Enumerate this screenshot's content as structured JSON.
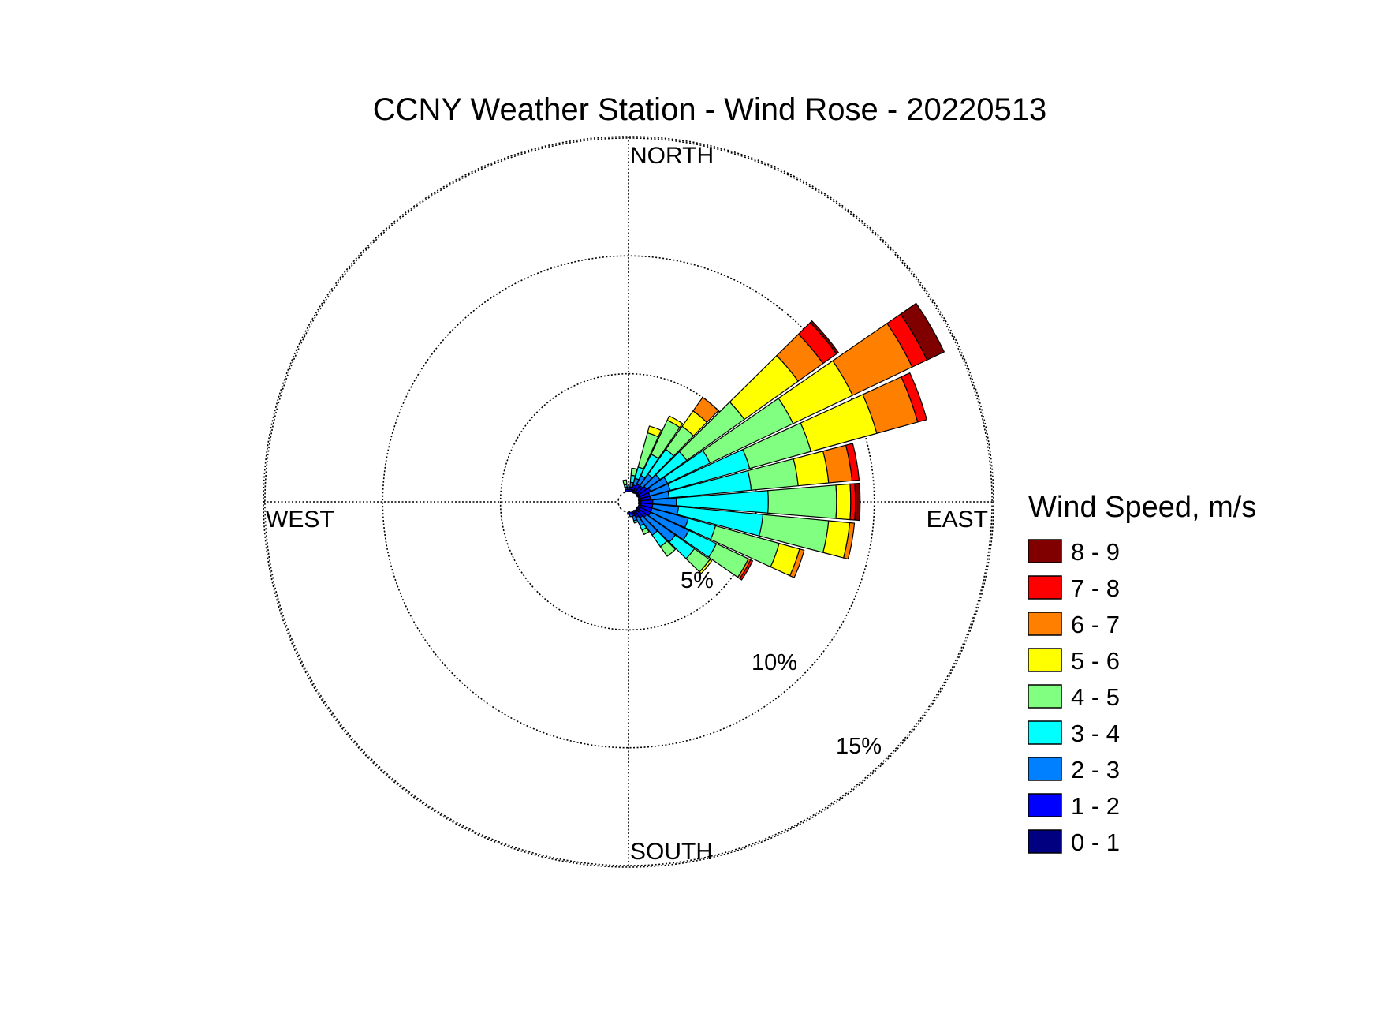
{
  "chart_data": {
    "type": "windrose",
    "title": "CCNY Weather Station - Wind Rose - 20220513",
    "directions": [
      "NORTH",
      "EAST",
      "SOUTH",
      "WEST"
    ],
    "radial_ticks": [
      "5%",
      "10%",
      "15%"
    ],
    "rmax_percent": 15.5,
    "legend_title": "Wind Speed, m/s",
    "speed_bins": [
      "0 - 1",
      "1 - 2",
      "2 - 3",
      "3 - 4",
      "4 - 5",
      "5 - 6",
      "6 - 7",
      "7 - 8",
      "8 - 9"
    ],
    "bin_colors": [
      "#000080",
      "#0000FF",
      "#0080FF",
      "#00FFFF",
      "#80FF80",
      "#FFFF00",
      "#FF8000",
      "#FF0000",
      "#800000"
    ],
    "sectors": [
      {
        "dir": 0,
        "cum": [
          0.0,
          0.1,
          0.2,
          0.2,
          0.2,
          0.2,
          0.2,
          0.2,
          0.2
        ]
      },
      {
        "dir": 10,
        "cum": [
          0.1,
          0.2,
          0.4,
          0.7,
          1.0,
          1.0,
          1.0,
          1.0,
          1.0
        ]
      },
      {
        "dir": 20,
        "cum": [
          0.1,
          0.3,
          0.6,
          1.1,
          2.6,
          2.9,
          2.9,
          2.9,
          2.9
        ]
      },
      {
        "dir": 30,
        "cum": [
          0.1,
          0.4,
          0.8,
          1.8,
          3.4,
          3.6,
          3.6,
          3.6,
          3.6
        ]
      },
      {
        "dir": 40,
        "cum": [
          0.1,
          0.4,
          1.0,
          2.3,
          3.5,
          4.3,
          5.0,
          5.0,
          5.0
        ]
      },
      {
        "dir": 50,
        "cum": [
          0.1,
          0.5,
          1.2,
          2.6,
          5.6,
          8.4,
          9.7,
          10.4,
          10.5
        ]
      },
      {
        "dir": 60,
        "cum": [
          0.1,
          0.6,
          1.4,
          3.4,
          7.3,
          10.1,
          12.9,
          13.6,
          14.4
        ]
      },
      {
        "dir": 70,
        "cum": [
          0.1,
          0.5,
          1.4,
          4.9,
          7.6,
          10.5,
          12.3,
          12.7,
          12.7
        ]
      },
      {
        "dir": 80,
        "cum": [
          0.1,
          0.5,
          1.3,
          4.8,
          6.8,
          8.1,
          9.1,
          9.4,
          9.4
        ]
      },
      {
        "dir": 90,
        "cum": [
          0.1,
          0.6,
          1.6,
          5.5,
          8.4,
          9.0,
          9.0,
          9.2,
          9.4
        ]
      },
      {
        "dir": 100,
        "cum": [
          0.1,
          0.6,
          1.7,
          5.3,
          8.1,
          9.0,
          9.2,
          9.2,
          9.2
        ]
      },
      {
        "dir": 110,
        "cum": [
          0.1,
          0.6,
          2.2,
          3.4,
          6.2,
          7.1,
          7.3,
          7.3,
          7.3
        ]
      },
      {
        "dir": 120,
        "cum": [
          0.1,
          0.6,
          2.4,
          3.7,
          5.2,
          5.2,
          5.3,
          5.4,
          5.4
        ]
      },
      {
        "dir": 130,
        "cum": [
          0.1,
          0.5,
          2.0,
          3.0,
          3.8,
          3.9,
          3.9,
          3.9,
          3.9
        ]
      },
      {
        "dir": 140,
        "cum": [
          0.1,
          0.4,
          1.3,
          1.9,
          2.4,
          2.4,
          2.4,
          2.4,
          2.4
        ]
      },
      {
        "dir": 150,
        "cum": [
          0.1,
          0.3,
          0.7,
          0.9,
          1.1,
          1.1,
          1.1,
          1.1,
          1.1
        ]
      },
      {
        "dir": 160,
        "cum": [
          0.1,
          0.2,
          0.4,
          0.5,
          0.5,
          0.5,
          0.5,
          0.5,
          0.5
        ]
      },
      {
        "dir": 170,
        "cum": [
          0.0,
          0.1,
          0.2,
          0.2,
          0.2,
          0.2,
          0.2,
          0.2,
          0.2
        ]
      },
      {
        "dir": 180,
        "cum": [
          0.0,
          0.1,
          0.1,
          0.1,
          0.1,
          0.1,
          0.1,
          0.1,
          0.1
        ]
      },
      {
        "dir": 350,
        "cum": [
          0.0,
          0.1,
          0.2,
          0.3,
          0.5,
          0.5,
          0.5,
          0.5,
          0.5
        ]
      }
    ]
  }
}
